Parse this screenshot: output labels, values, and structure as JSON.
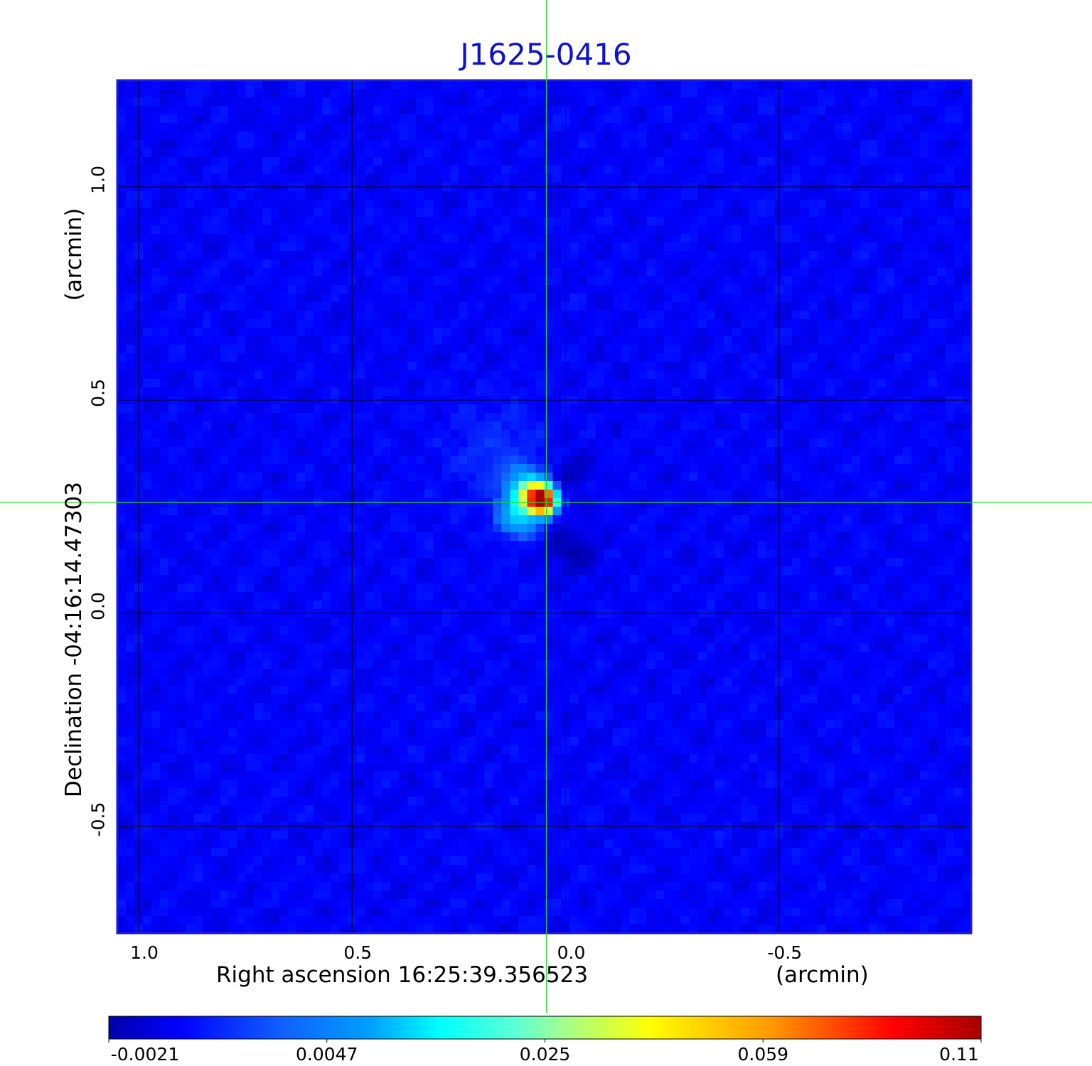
{
  "chart_data": {
    "type": "heatmap",
    "title": "J1625-0416",
    "xlabel": "Right ascension  16:25:39.356523",
    "xlabel_unit": "(arcmin)",
    "ylabel": "Declination  -04:16:14.47303",
    "ylabel_unit": "(arcmin)",
    "xlim": [
      1.05,
      -0.95
    ],
    "ylim": [
      -0.75,
      1.25
    ],
    "x_ticks": [
      1.0,
      0.5,
      0.0,
      -0.5
    ],
    "x_tick_labels": [
      "1.0",
      "0.5",
      "0.0",
      "-0.5"
    ],
    "y_ticks": [
      1.0,
      0.5,
      0.0,
      -0.5
    ],
    "y_tick_labels": [
      "1.0",
      "0.5",
      "0.0",
      "-0.5"
    ],
    "grid": true,
    "crosshair": {
      "x": 0.045,
      "y": 0.26,
      "color": "#22dd22"
    },
    "colormap": "jet",
    "colorbar": {
      "tick_values": [
        -0.0021,
        0.0047,
        0.025,
        0.059,
        0.11
      ],
      "tick_labels": [
        "-0.0021",
        "0.0047",
        "0.025",
        "0.059",
        "0.11"
      ]
    },
    "background_level": 0.0,
    "source": {
      "x": 0.05,
      "y": 0.26,
      "peak": 0.11,
      "components": [
        {
          "x": 0.055,
          "y": 0.265,
          "amp": 0.11,
          "sigma": 0.018
        },
        {
          "x": 0.075,
          "y": 0.275,
          "amp": 0.045,
          "sigma": 0.022
        },
        {
          "x": 0.11,
          "y": 0.23,
          "amp": 0.012,
          "sigma": 0.03
        },
        {
          "x": 0.1,
          "y": 0.3,
          "amp": 0.009,
          "sigma": 0.03
        },
        {
          "x": -0.01,
          "y": 0.33,
          "amp": -0.0018,
          "sigma": 0.03
        },
        {
          "x": -0.015,
          "y": 0.15,
          "amp": -0.0018,
          "sigma": 0.04
        },
        {
          "x": 0.16,
          "y": 0.38,
          "amp": 0.0015,
          "sigma": 0.08
        }
      ]
    }
  }
}
